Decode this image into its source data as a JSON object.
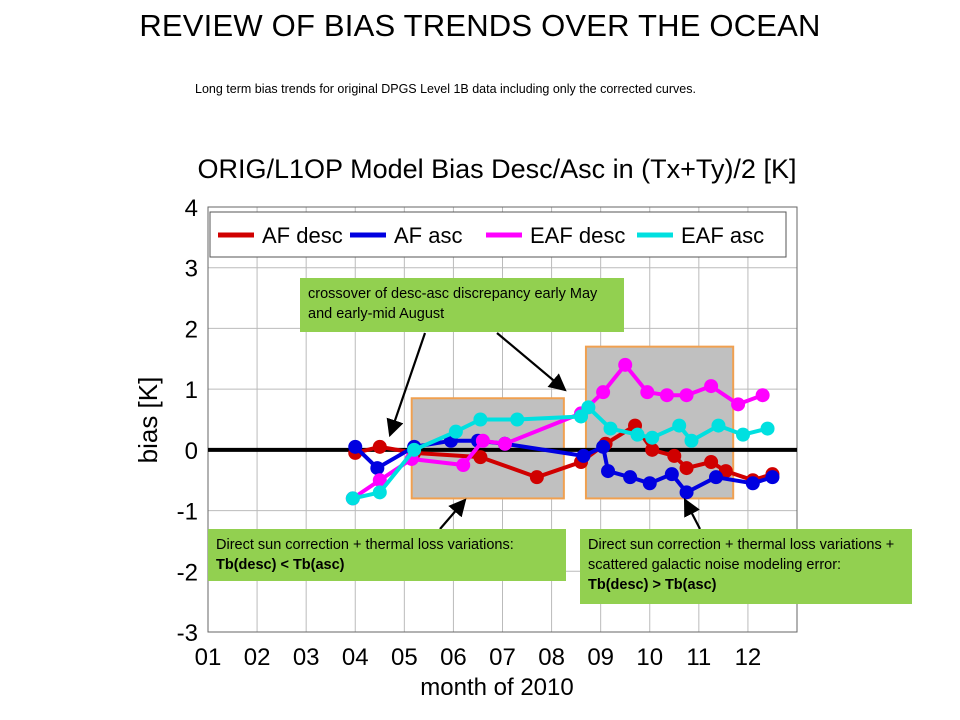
{
  "slide_title": "REVIEW OF BIAS TRENDS OVER THE OCEAN",
  "subtitle": "Long term bias trends for original DPGS Level 1B data including only the corrected curves.",
  "callouts": {
    "top": "crossover of desc-asc discrepancy early May and early-mid August",
    "left_prefix": "Direct sun correction + thermal loss variations: ",
    "left_emph": "Tb(desc) < Tb(asc)",
    "right_prefix": "Direct sun correction + thermal loss variations + scattered galactic noise modeling error: ",
    "right_emph": "Tb(desc) > Tb(asc)",
    "color": "#92d050"
  },
  "highlight_box": {
    "fill": "#c0c0c0",
    "stroke": "#f0a050"
  },
  "chart_data": {
    "type": "line",
    "title": "ORIG/L1OP Model Bias Desc/Asc in (Tx+Ty)/2 [K]",
    "xlabel": "month of 2010",
    "ylabel": "bias [K]",
    "xlim": [
      1,
      13
    ],
    "ylim": [
      -3,
      4
    ],
    "x_ticks": [
      "01",
      "02",
      "03",
      "04",
      "05",
      "06",
      "07",
      "08",
      "09",
      "10",
      "11",
      "12"
    ],
    "y_ticks": [
      "4",
      "3",
      "2",
      "1",
      "0",
      "-1",
      "-2",
      "-3"
    ],
    "grid": true,
    "legend_position": "top",
    "zero_line": true,
    "highlight_ranges": [
      {
        "x": [
          5.15,
          8.25
        ],
        "y": [
          -0.8,
          0.85
        ]
      },
      {
        "x": [
          8.7,
          11.7
        ],
        "y": [
          -0.8,
          1.7
        ]
      }
    ],
    "series": [
      {
        "name": "AF desc",
        "color": "#d00000",
        "points": [
          [
            4.0,
            -0.05
          ],
          [
            4.5,
            0.05
          ],
          [
            5.2,
            -0.05
          ],
          [
            6.55,
            -0.12
          ],
          [
            7.7,
            -0.45
          ],
          [
            8.6,
            -0.2
          ],
          [
            9.1,
            0.1
          ],
          [
            9.7,
            0.4
          ],
          [
            10.05,
            0.0
          ],
          [
            10.5,
            -0.1
          ],
          [
            10.75,
            -0.3
          ],
          [
            11.25,
            -0.2
          ],
          [
            11.55,
            -0.35
          ],
          [
            12.1,
            -0.5
          ],
          [
            12.5,
            -0.4
          ]
        ]
      },
      {
        "name": "AF asc",
        "color": "#0000e0",
        "points": [
          [
            4.0,
            0.05
          ],
          [
            4.45,
            -0.3
          ],
          [
            5.2,
            0.05
          ],
          [
            5.95,
            0.15
          ],
          [
            6.5,
            0.15
          ],
          [
            7.05,
            0.1
          ],
          [
            8.65,
            -0.1
          ],
          [
            9.05,
            0.05
          ],
          [
            9.15,
            -0.35
          ],
          [
            9.6,
            -0.45
          ],
          [
            10.0,
            -0.55
          ],
          [
            10.45,
            -0.4
          ],
          [
            10.75,
            -0.7
          ],
          [
            11.35,
            -0.45
          ],
          [
            12.1,
            -0.55
          ],
          [
            12.5,
            -0.45
          ]
        ]
      },
      {
        "name": "EAF desc",
        "color": "#ff00ff",
        "points": [
          [
            3.95,
            -0.8
          ],
          [
            4.5,
            -0.5
          ],
          [
            5.15,
            -0.15
          ],
          [
            6.2,
            -0.25
          ],
          [
            6.6,
            0.15
          ],
          [
            7.05,
            0.1
          ],
          [
            8.6,
            0.6
          ],
          [
            9.05,
            0.95
          ],
          [
            9.5,
            1.4
          ],
          [
            9.95,
            0.95
          ],
          [
            10.35,
            0.9
          ],
          [
            10.75,
            0.9
          ],
          [
            11.25,
            1.05
          ],
          [
            11.8,
            0.75
          ],
          [
            12.3,
            0.9
          ]
        ]
      },
      {
        "name": "EAF asc",
        "color": "#00e0e0",
        "points": [
          [
            3.95,
            -0.8
          ],
          [
            4.5,
            -0.7
          ],
          [
            5.2,
            0.0
          ],
          [
            6.05,
            0.3
          ],
          [
            6.55,
            0.5
          ],
          [
            7.3,
            0.5
          ],
          [
            8.6,
            0.55
          ],
          [
            8.75,
            0.7
          ],
          [
            9.2,
            0.35
          ],
          [
            9.75,
            0.25
          ],
          [
            10.05,
            0.2
          ],
          [
            10.6,
            0.4
          ],
          [
            10.85,
            0.15
          ],
          [
            11.4,
            0.4
          ],
          [
            11.9,
            0.25
          ],
          [
            12.4,
            0.35
          ]
        ]
      }
    ]
  }
}
